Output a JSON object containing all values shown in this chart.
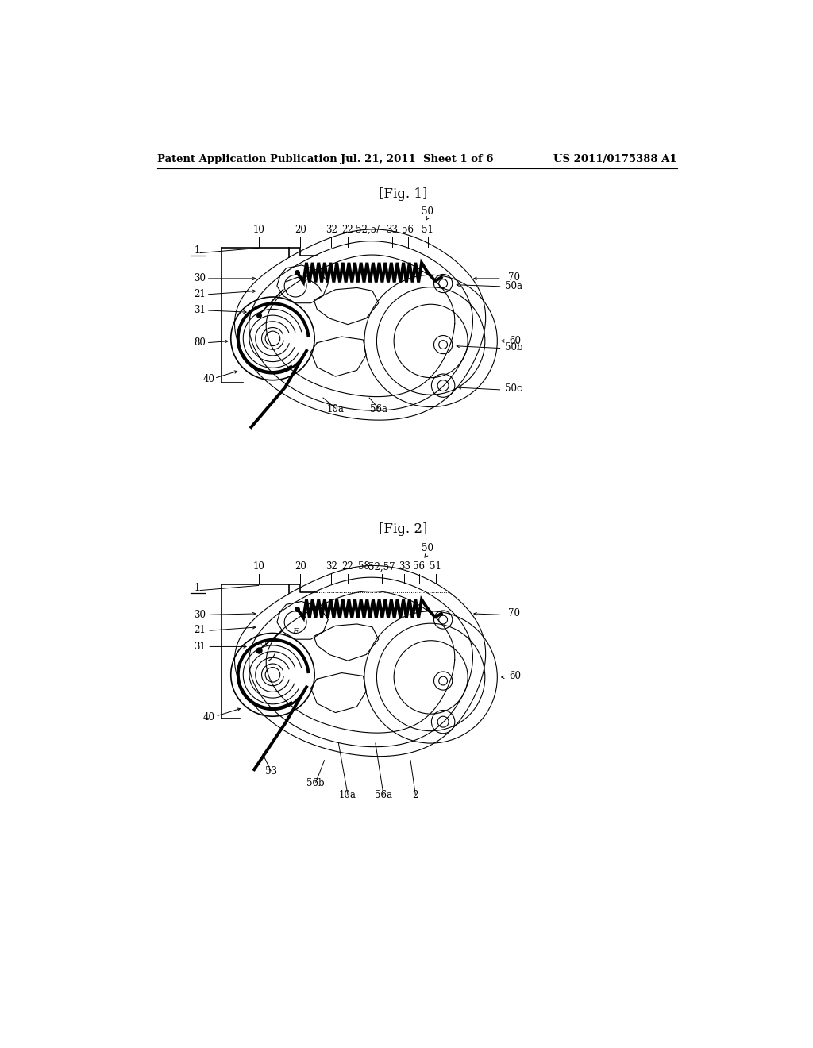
{
  "bg_color": "#ffffff",
  "line_color": "#000000",
  "header_left": "Patent Application Publication",
  "header_mid": "Jul. 21, 2011  Sheet 1 of 6",
  "header_right": "US 2011/0175388 A1",
  "fig1_title": "[Fig. 1]",
  "fig2_title": "[Fig. 2]"
}
